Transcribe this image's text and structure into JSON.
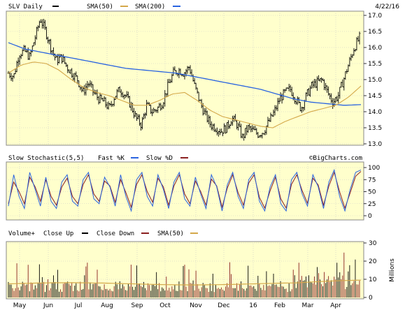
{
  "header": {
    "ticker_label": "SLV Daily",
    "sma50_label": "SMA(50)",
    "sma200_label": "SMA(200)",
    "date_label": "4/22/16",
    "watermark": "©BigCharts.com"
  },
  "colors": {
    "background": "#ffffcc",
    "price_bar": "#000000",
    "sma50": "#d4a84a",
    "sma200": "#2a64e0",
    "fast_k": "#2a64e0",
    "slow_d": "#8b2020",
    "vol_up": "#000000",
    "vol_down": "#8b2020"
  },
  "chart_data": [
    {
      "type": "ohlc",
      "title": "SLV Daily",
      "ylim": [
        13.0,
        17.0
      ],
      "yticks": [
        "17.0",
        "16.5",
        "16.0",
        "15.5",
        "15.0",
        "14.5",
        "14.0",
        "13.5",
        "13.0"
      ],
      "x_months": [
        "May",
        "Jun",
        "Jul",
        "Aug",
        "Sep",
        "Oct",
        "Nov",
        "Dec",
        "16",
        "Feb",
        "Mar",
        "Apr"
      ],
      "price_anchors": [
        15.2,
        15.1,
        15.8,
        15.9,
        15.7,
        16.3,
        16.9,
        16.5,
        16.0,
        15.6,
        15.7,
        15.4,
        15.2,
        15.0,
        14.6,
        14.9,
        14.6,
        14.4,
        14.3,
        14.1,
        14.5,
        14.7,
        14.5,
        14.2,
        13.8,
        13.6,
        14.2,
        14.0,
        14.1,
        14.3,
        14.8,
        15.2,
        15.3,
        15.2,
        15.4,
        14.8,
        14.3,
        13.9,
        13.6,
        13.5,
        13.4,
        13.5,
        13.8,
        13.6,
        13.2,
        13.5,
        13.4,
        13.3,
        13.4,
        13.7,
        14.0,
        14.4,
        14.6,
        14.7,
        14.4,
        14.1,
        14.5,
        14.8,
        14.9,
        15.0,
        14.6,
        14.3,
        14.5,
        15.0,
        15.5,
        16.0,
        16.3
      ],
      "series": [
        {
          "name": "SMA(50)",
          "anchors": [
            15.2,
            15.45,
            15.55,
            15.5,
            15.3,
            15.0,
            14.75,
            14.6,
            14.5,
            14.35,
            14.2,
            14.2,
            14.35,
            14.55,
            14.6,
            14.35,
            14.05,
            13.85,
            13.75,
            13.65,
            13.55,
            13.5,
            13.7,
            13.85,
            14.0,
            14.1,
            14.2,
            14.45,
            14.8
          ]
        },
        {
          "name": "SMA(200)",
          "anchors": [
            16.15,
            15.95,
            15.85,
            15.75,
            15.65,
            15.55,
            15.45,
            15.35,
            15.3,
            15.25,
            15.2,
            15.1,
            15.0,
            14.9,
            14.8,
            14.7,
            14.55,
            14.4,
            14.3,
            14.25,
            14.2,
            14.22
          ]
        }
      ]
    },
    {
      "type": "line",
      "title": "Slow Stochastic(5,5)",
      "ylim": [
        0,
        100
      ],
      "yticks": [
        "100",
        "75",
        "50",
        "25",
        "0"
      ],
      "legend": [
        "Fast %K",
        "Slow %D"
      ],
      "series": [
        {
          "name": "Fast %K",
          "values": [
            20,
            85,
            40,
            15,
            90,
            55,
            20,
            80,
            30,
            15,
            70,
            85,
            30,
            20,
            75,
            90,
            35,
            25,
            80,
            60,
            20,
            85,
            40,
            10,
            75,
            90,
            40,
            20,
            85,
            55,
            15,
            70,
            90,
            35,
            20,
            80,
            45,
            15,
            85,
            60,
            10,
            65,
            90,
            40,
            15,
            75,
            90,
            30,
            10,
            60,
            85,
            25,
            10,
            75,
            90,
            45,
            20,
            85,
            60,
            15,
            70,
            95,
            40,
            10,
            55,
            90,
            95
          ]
        },
        {
          "name": "Slow %D",
          "values": [
            25,
            70,
            50,
            25,
            80,
            60,
            30,
            75,
            40,
            22,
            60,
            78,
            40,
            25,
            65,
            85,
            45,
            30,
            72,
            62,
            28,
            75,
            48,
            18,
            65,
            85,
            50,
            28,
            78,
            60,
            22,
            62,
            85,
            45,
            25,
            72,
            50,
            22,
            76,
            62,
            18,
            58,
            85,
            48,
            22,
            68,
            85,
            38,
            16,
            52,
            80,
            35,
            16,
            65,
            85,
            52,
            26,
            78,
            64,
            22,
            62,
            90,
            50,
            16,
            48,
            82,
            92
          ]
        }
      ]
    },
    {
      "type": "bar",
      "title": "Volume+",
      "ylim": [
        0,
        30
      ],
      "yticks": [
        "30",
        "20",
        "10",
        "0"
      ],
      "ylabel": "Millions",
      "legend": [
        "Close Up",
        "Close Down",
        "SMA(50)"
      ],
      "sma50_level": 7.5
    }
  ]
}
